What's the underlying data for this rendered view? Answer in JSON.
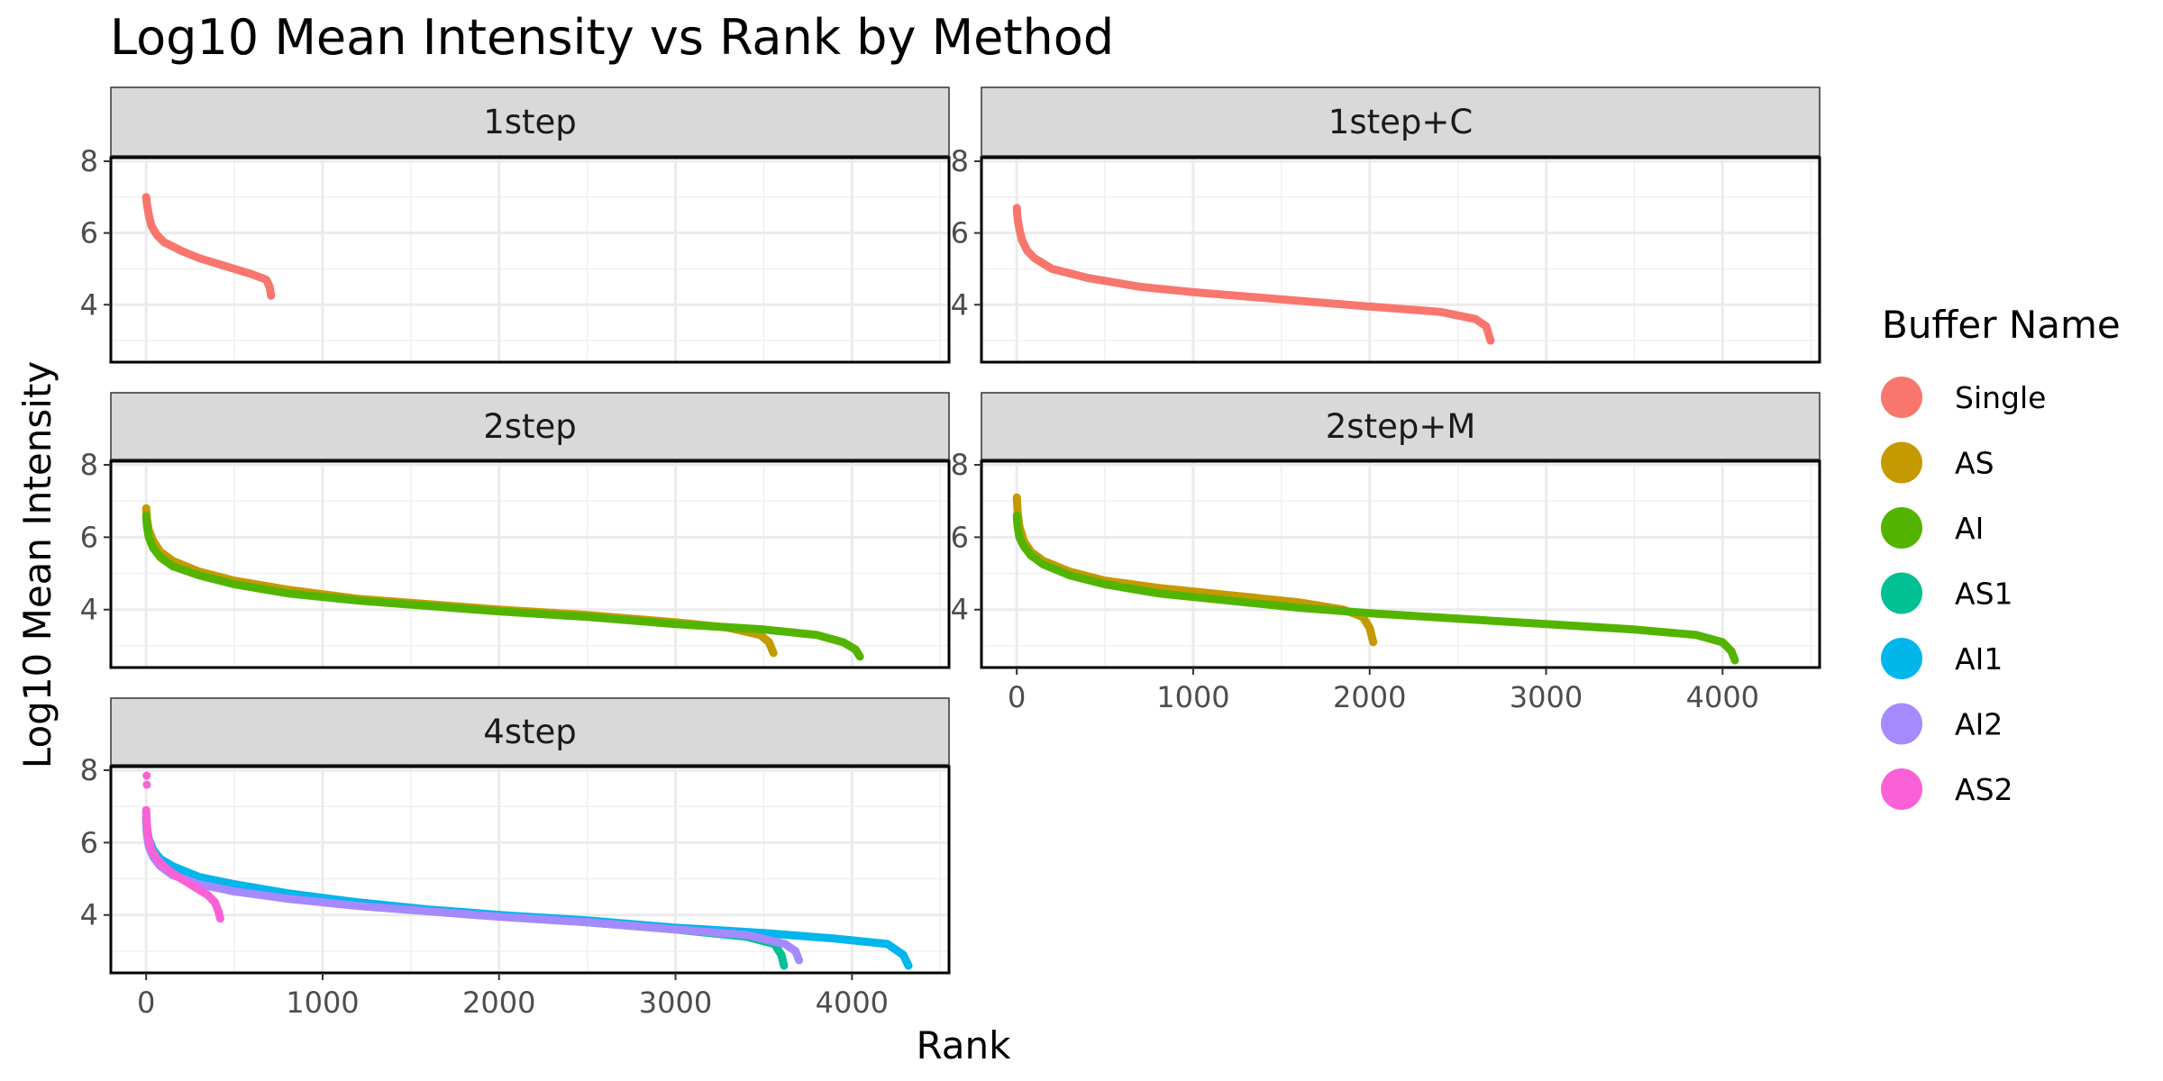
{
  "chart_data": {
    "type": "line",
    "title": "Log10 Mean Intensity vs Rank by Method",
    "xlabel": "Rank",
    "ylabel": "Log10 Mean Intensity",
    "xlim": [
      -200,
      4550
    ],
    "ylim": [
      2.4,
      8.1
    ],
    "x_ticks": [
      "0",
      "1000",
      "2000",
      "3000",
      "4000"
    ],
    "y_ticks": [
      "4",
      "6",
      "8"
    ],
    "grid": true,
    "legend": {
      "title": "Buffer Name",
      "placement": "right",
      "entries": [
        {
          "name": "Single",
          "color": "#F8766D"
        },
        {
          "name": "AS",
          "color": "#C49A00"
        },
        {
          "name": "AI",
          "color": "#53B400"
        },
        {
          "name": "AS1",
          "color": "#00C094"
        },
        {
          "name": "AI1",
          "color": "#00B6EB"
        },
        {
          "name": "AI2",
          "color": "#A58AFF"
        },
        {
          "name": "AS2",
          "color": "#FB61D7"
        }
      ]
    },
    "facets": [
      {
        "label": "1step",
        "series": [
          {
            "name": "Single",
            "x": [
              0,
              5,
              15,
              30,
              60,
              100,
              200,
              300,
              400,
              500,
              600,
              680,
              700,
              708
            ],
            "y": [
              7.0,
              6.8,
              6.5,
              6.2,
              5.95,
              5.75,
              5.5,
              5.3,
              5.15,
              5.0,
              4.85,
              4.7,
              4.5,
              4.25
            ]
          }
        ]
      },
      {
        "label": "1step+C",
        "series": [
          {
            "name": "Single",
            "x": [
              0,
              5,
              15,
              30,
              60,
              100,
              200,
              400,
              700,
              1000,
              1500,
              2000,
              2400,
              2600,
              2660,
              2685
            ],
            "y": [
              6.7,
              6.4,
              6.1,
              5.8,
              5.5,
              5.3,
              5.0,
              4.75,
              4.5,
              4.35,
              4.15,
              3.95,
              3.8,
              3.6,
              3.4,
              3.0
            ]
          }
        ]
      },
      {
        "label": "2step",
        "series": [
          {
            "name": "AS",
            "x": [
              0,
              5,
              15,
              40,
              80,
              150,
              300,
              500,
              800,
              1200,
              1600,
              2000,
              2500,
              3000,
              3300,
              3480,
              3530,
              3555
            ],
            "y": [
              6.8,
              6.5,
              6.2,
              5.9,
              5.6,
              5.35,
              5.05,
              4.8,
              4.55,
              4.3,
              4.15,
              4.0,
              3.85,
              3.65,
              3.5,
              3.3,
              3.1,
              2.8
            ]
          },
          {
            "name": "AI",
            "x": [
              0,
              5,
              15,
              40,
              80,
              150,
              300,
              500,
              800,
              1200,
              1600,
              2000,
              2500,
              3000,
              3500,
              3800,
              3950,
              4020,
              4045
            ],
            "y": [
              6.6,
              6.3,
              6.0,
              5.7,
              5.45,
              5.2,
              4.95,
              4.7,
              4.45,
              4.25,
              4.1,
              3.95,
              3.8,
              3.6,
              3.45,
              3.3,
              3.1,
              2.9,
              2.7
            ]
          }
        ]
      },
      {
        "label": "2step+M",
        "series": [
          {
            "name": "AS",
            "x": [
              0,
              5,
              15,
              40,
              80,
              150,
              300,
              500,
              800,
              1200,
              1600,
              1850,
              1960,
              2000,
              2020
            ],
            "y": [
              7.1,
              6.7,
              6.3,
              5.9,
              5.6,
              5.35,
              5.05,
              4.8,
              4.6,
              4.4,
              4.2,
              4.0,
              3.8,
              3.5,
              3.1
            ]
          },
          {
            "name": "AI",
            "x": [
              0,
              5,
              15,
              40,
              80,
              150,
              300,
              500,
              800,
              1200,
              1600,
              2000,
              2500,
              3000,
              3500,
              3850,
              4000,
              4050,
              4070
            ],
            "y": [
              6.6,
              6.3,
              6.0,
              5.75,
              5.5,
              5.25,
              4.95,
              4.7,
              4.45,
              4.25,
              4.05,
              3.9,
              3.75,
              3.6,
              3.45,
              3.3,
              3.1,
              2.85,
              2.6
            ]
          }
        ]
      },
      {
        "label": "4step",
        "series": [
          {
            "name": "AS1",
            "x": [
              0,
              5,
              15,
              40,
              80,
              150,
              300,
              500,
              800,
              1200,
              1600,
              2000,
              2500,
              3000,
              3400,
              3560,
              3600,
              3615
            ],
            "y": [
              6.6,
              6.3,
              6.0,
              5.75,
              5.5,
              5.3,
              5.0,
              4.8,
              4.55,
              4.35,
              4.15,
              4.0,
              3.8,
              3.6,
              3.4,
              3.2,
              2.9,
              2.6
            ]
          },
          {
            "name": "AI1",
            "x": [
              0,
              5,
              15,
              40,
              80,
              150,
              300,
              500,
              800,
              1200,
              1600,
              2000,
              2500,
              3000,
              3500,
              3900,
              4200,
              4290,
              4320
            ],
            "y": [
              6.7,
              6.4,
              6.1,
              5.8,
              5.55,
              5.35,
              5.05,
              4.85,
              4.6,
              4.35,
              4.15,
              4.0,
              3.85,
              3.65,
              3.5,
              3.35,
              3.2,
              2.9,
              2.6
            ]
          },
          {
            "name": "AI2",
            "x": [
              0,
              5,
              15,
              40,
              80,
              150,
              300,
              500,
              800,
              1200,
              1600,
              2000,
              2500,
              3000,
              3400,
              3620,
              3680,
              3700
            ],
            "y": [
              6.5,
              6.2,
              5.9,
              5.6,
              5.35,
              5.1,
              4.85,
              4.65,
              4.45,
              4.25,
              4.1,
              3.95,
              3.8,
              3.6,
              3.45,
              3.2,
              3.0,
              2.75
            ]
          },
          {
            "name": "AS2",
            "x": [
              0,
              3,
              8,
              15,
              30,
              60,
              100,
              150,
              200,
              250,
              300,
              350,
              390,
              410,
              420
            ],
            "y": [
              6.9,
              6.6,
              6.3,
              6.05,
              5.8,
              5.55,
              5.35,
              5.15,
              5.0,
              4.85,
              4.7,
              4.55,
              4.35,
              4.1,
              3.9
            ]
          }
        ]
      }
    ],
    "outliers": [
      {
        "facet": 4,
        "name": "AS2",
        "x": 3,
        "y": 7.85
      },
      {
        "facet": 4,
        "name": "AS2",
        "x": 4,
        "y": 7.6
      }
    ]
  }
}
